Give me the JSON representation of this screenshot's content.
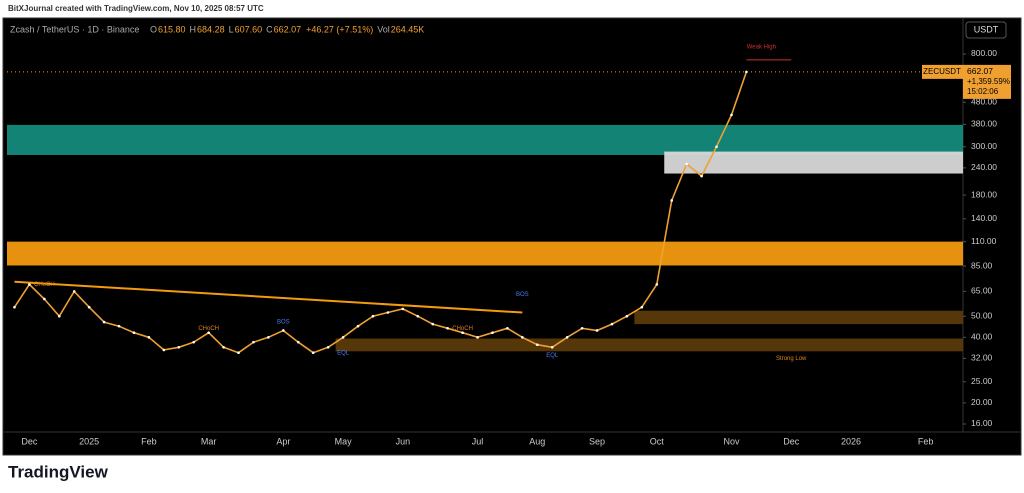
{
  "header": {
    "attribution": "BitXJournal created with TradingView.com, Nov 10, 2025 08:57 UTC"
  },
  "chart_data": {
    "type": "line",
    "symbol": "Zcash / TetherUS · 1D · Binance",
    "ohlc": [
      {
        "label": "O",
        "value": "615.80"
      },
      {
        "label": "H",
        "value": "684.28"
      },
      {
        "label": "L",
        "value": "607.60"
      },
      {
        "label": "C",
        "value": "662.07"
      },
      {
        "label": "",
        "value": "+46.27 (+7.51%)"
      },
      {
        "label": "Vol",
        "value": "264.45K"
      }
    ],
    "currency": "USDT",
    "price_label": {
      "ticker": "ZECUSDT",
      "price": "662.07",
      "change": "+1,359.59%",
      "countdown": "15:02:06"
    },
    "categories": [
      null,
      "Dec",
      null,
      null,
      null,
      "2025",
      null,
      null,
      null,
      "Feb",
      null,
      null,
      null,
      "Mar",
      null,
      null,
      null,
      null,
      "Apr",
      null,
      null,
      null,
      "May",
      null,
      null,
      null,
      "Jun",
      null,
      null,
      null,
      null,
      "Jul",
      null,
      null,
      null,
      "Aug",
      null,
      null,
      null,
      "Sep",
      null,
      null,
      null,
      "Oct",
      null,
      null,
      null,
      null,
      "Nov",
      null,
      null,
      null,
      "Dec",
      null,
      null,
      null,
      "2026",
      null,
      null,
      null,
      null,
      "Feb",
      null,
      null
    ],
    "series": [
      {
        "name": "ZECUSDT",
        "color": "#f0a030",
        "values": [
          55,
          70,
          60,
          50,
          65,
          55,
          47,
          45,
          42,
          40,
          35,
          36,
          38,
          42,
          36,
          34,
          38,
          40,
          43,
          38,
          34,
          36,
          40,
          45,
          50,
          52,
          54,
          50,
          46,
          44,
          42,
          40,
          42,
          44,
          40,
          37,
          36,
          40,
          44,
          43,
          46,
          50,
          55,
          70,
          170,
          250,
          220,
          300,
          420,
          662.07,
          null,
          null,
          null,
          null,
          null,
          null,
          null,
          null,
          null,
          null,
          null,
          null,
          null,
          null
        ]
      }
    ],
    "log_scale": true,
    "grid": false,
    "ylim": [
      14.7,
      908
    ],
    "yticks": [
      {
        "value": 800,
        "label": "800.00"
      },
      {
        "value": 480,
        "label": "480.00"
      },
      {
        "value": 380,
        "label": "380.00"
      },
      {
        "value": 300,
        "label": "300.00"
      },
      {
        "value": 240,
        "label": "240.00"
      },
      {
        "value": 180,
        "label": "180.00"
      },
      {
        "value": 140,
        "label": "140.00"
      },
      {
        "value": 110,
        "label": "110.00"
      },
      {
        "value": 85,
        "label": "85.00"
      },
      {
        "value": 65,
        "label": "65.00"
      },
      {
        "value": 50,
        "label": "50.00"
      },
      {
        "value": 40,
        "label": "40.00"
      },
      {
        "value": 32,
        "label": "32.00"
      },
      {
        "value": 25,
        "label": "25.00"
      },
      {
        "value": 20,
        "label": "20.00"
      },
      {
        "value": 16,
        "label": "16.00"
      }
    ],
    "zones": [
      {
        "low": 275,
        "high": 378,
        "start": 0,
        "color": "#138a7a"
      },
      {
        "low": 85.5,
        "high": 110,
        "start": 0,
        "color": "#f39a10"
      },
      {
        "low": 226,
        "high": 285,
        "start": 44,
        "color": "#d8d8d8"
      },
      {
        "low": 46,
        "high": 53,
        "start": 42,
        "color": "#5a3a0a"
      },
      {
        "low": 34.5,
        "high": 39.5,
        "start": 22,
        "color": "#5a3a0a"
      }
    ],
    "trendline": {
      "start_index": 0,
      "start_price": 72,
      "end_index": 34,
      "end_price": 52,
      "color": "#f39a10"
    },
    "weak_high": {
      "price": 752,
      "start": 49,
      "end": 52
    },
    "annotations": [
      {
        "text": "Weak High",
        "index": 50,
        "price": 860
      },
      {
        "text": "Strong Low",
        "index": 52,
        "price": 32
      },
      {
        "text": "BOS",
        "index": 34,
        "price": 63
      },
      {
        "text": "BOS",
        "index": 18,
        "price": 47
      },
      {
        "text": "CHoCH",
        "index": 2,
        "price": 70
      },
      {
        "text": "CHoCH",
        "index": 13,
        "price": 44
      },
      {
        "text": "CHoCH",
        "index": 30,
        "price": 44
      },
      {
        "text": "EQL",
        "index": 22,
        "price": 34
      },
      {
        "text": "EQL",
        "index": 36,
        "price": 33
      }
    ]
  },
  "footer": {
    "brand": "TradingView"
  }
}
